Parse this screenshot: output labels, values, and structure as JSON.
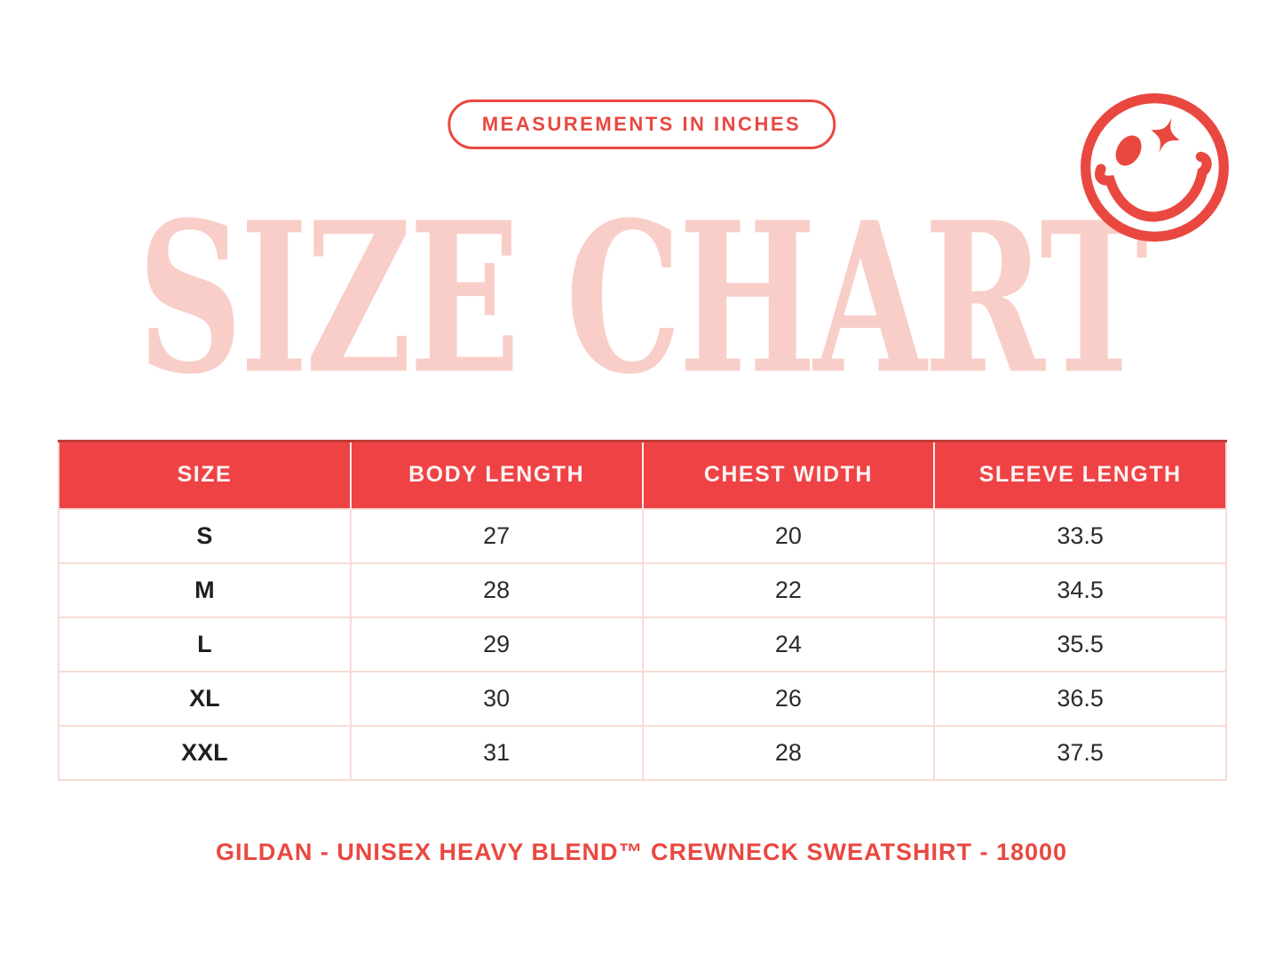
{
  "badge": {
    "label": "MEASUREMENTS IN INCHES"
  },
  "title": {
    "text": "SIZE CHART"
  },
  "icons": {
    "smiley": "winking-smiley-sparkle-eye-icon"
  },
  "colors": {
    "accent_red": "#E94840",
    "header_red": "#EF4245",
    "title_pink": "#F9CEC8",
    "table_border_pink": "#F8DBD7",
    "body_text": "#2B2B2B"
  },
  "table": {
    "headers": [
      "SIZE",
      "BODY LENGTH",
      "CHEST WIDTH",
      "SLEEVE LENGTH"
    ],
    "rows": [
      [
        "S",
        "27",
        "20",
        "33.5"
      ],
      [
        "M",
        "28",
        "22",
        "34.5"
      ],
      [
        "L",
        "29",
        "24",
        "35.5"
      ],
      [
        "XL",
        "30",
        "26",
        "36.5"
      ],
      [
        "XXL",
        "31",
        "28",
        "37.5"
      ]
    ]
  },
  "footer": {
    "label": "GILDAN - UNISEX HEAVY BLEND™ CREWNECK SWEATSHIRT - 18000"
  }
}
